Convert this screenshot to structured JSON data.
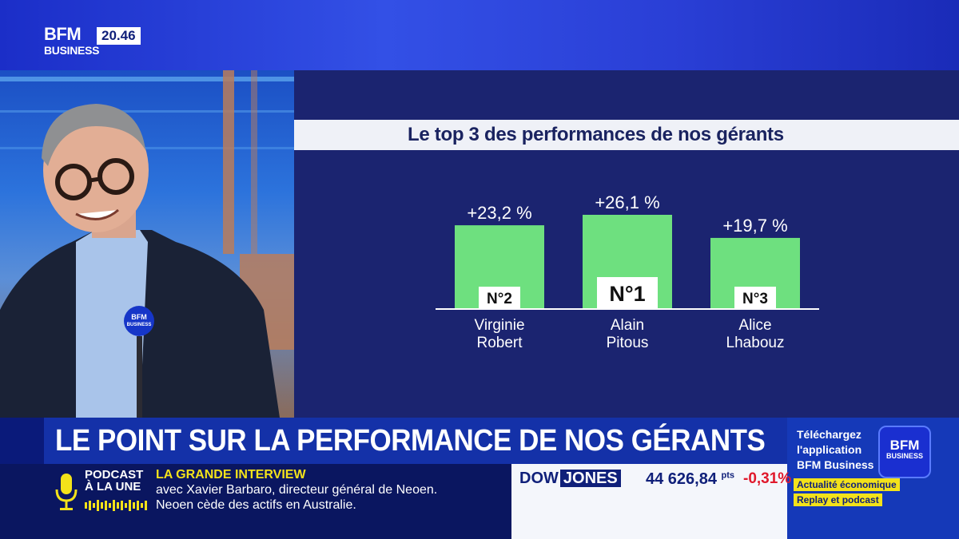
{
  "channel": {
    "name": "BFM",
    "sub": "BUSINESS",
    "time": "20.46"
  },
  "headline": "LE POINT SUR LA PERFORMANCE DE NOS GÉRANTS",
  "podcast": {
    "line1": "PODCAST",
    "line2": "À LA UNE"
  },
  "grande_interview": {
    "title": "LA GRANDE INTERVIEW",
    "line1": "avec Xavier Barbaro, directeur général de Neoen.",
    "line2": "Neoen cède des actifs en Australie."
  },
  "market": {
    "dow": "DOW",
    "jones": "JONES",
    "value": "44 626,84",
    "unit": "pts",
    "change": "-0,31%"
  },
  "promo": {
    "text": "Téléchargez l'application BFM Business",
    "logo_top": "BFM",
    "logo_bottom": "BUSINESS",
    "tag1": "Actualité économique",
    "tag2": "Replay et podcast"
  },
  "mic": {
    "top": "BFM",
    "bottom": "BUSINESS"
  },
  "colors": {
    "bar": "#6ee07f",
    "panel": "#1b2470",
    "accent": "#f3e21a",
    "negative": "#e0192c"
  },
  "chart_data": {
    "type": "bar",
    "title": "Le top 3 des performances de nos gérants",
    "categories": [
      "Virginie Robert",
      "Alain Pitous",
      "Alice Lhabouz"
    ],
    "names_line1": [
      "Virginie",
      "Alain",
      "Alice"
    ],
    "names_line2": [
      "Robert",
      "Pitous",
      "Lhabouz"
    ],
    "values": [
      23.2,
      26.1,
      19.7
    ],
    "value_labels": [
      "+23,2 %",
      "+26,1 %",
      "+19,7 %"
    ],
    "ranks": [
      "N°2",
      "N°1",
      "N°3"
    ],
    "unit": "%",
    "ylim": [
      0,
      26.1
    ]
  }
}
